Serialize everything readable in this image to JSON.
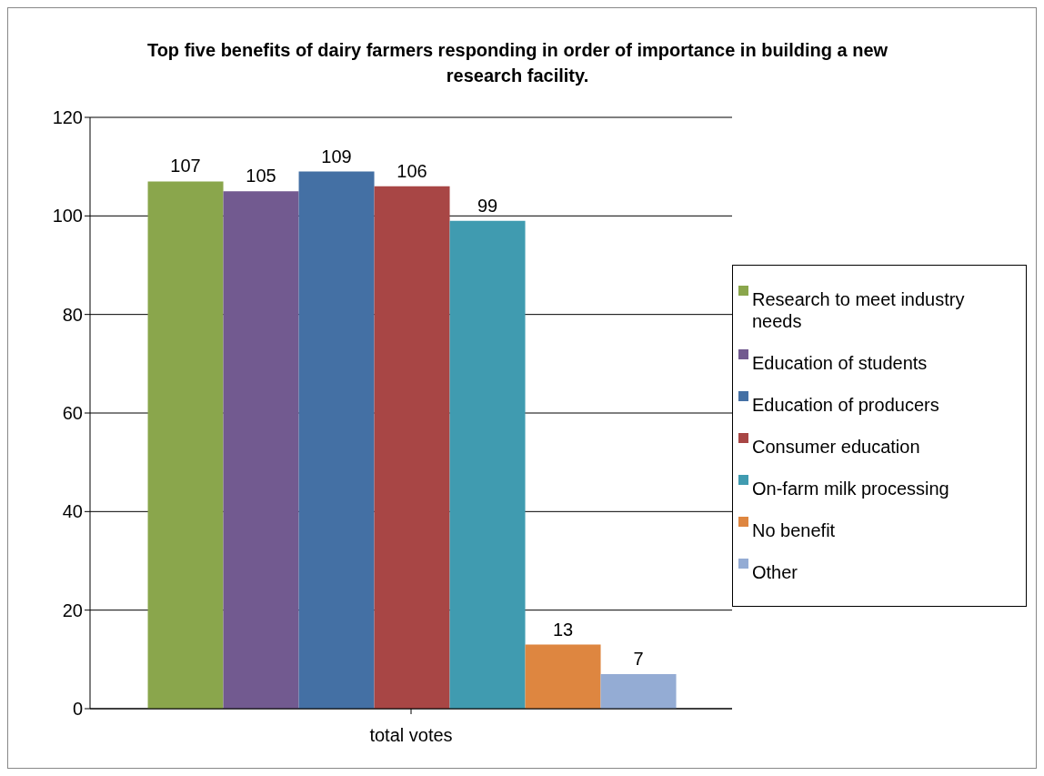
{
  "chart_data": {
    "type": "bar",
    "title": "Top five benefits of dairy farmers responding in order of importance  in building a new research facility.",
    "categories": [
      "total votes"
    ],
    "series": [
      {
        "name": "Research to meet industry needs",
        "color": "#8aa64c",
        "values": [
          107
        ]
      },
      {
        "name": "Education of students",
        "color": "#725a90",
        "values": [
          105
        ]
      },
      {
        "name": "Education of producers",
        "color": "#4470a4",
        "values": [
          109
        ]
      },
      {
        "name": "Consumer education",
        "color": "#a84645",
        "values": [
          106
        ]
      },
      {
        "name": "On-farm milk processing",
        "color": "#409bb0",
        "values": [
          99
        ]
      },
      {
        "name": "No benefit",
        "color": "#de8640",
        "values": [
          13
        ]
      },
      {
        "name": "Other",
        "color": "#94acd4",
        "values": [
          7
        ]
      }
    ],
    "ylim": [
      0,
      120
    ],
    "yticks": [
      0,
      20,
      40,
      60,
      80,
      100,
      120
    ],
    "grid": "y",
    "legend": "right",
    "data_labels": true
  }
}
